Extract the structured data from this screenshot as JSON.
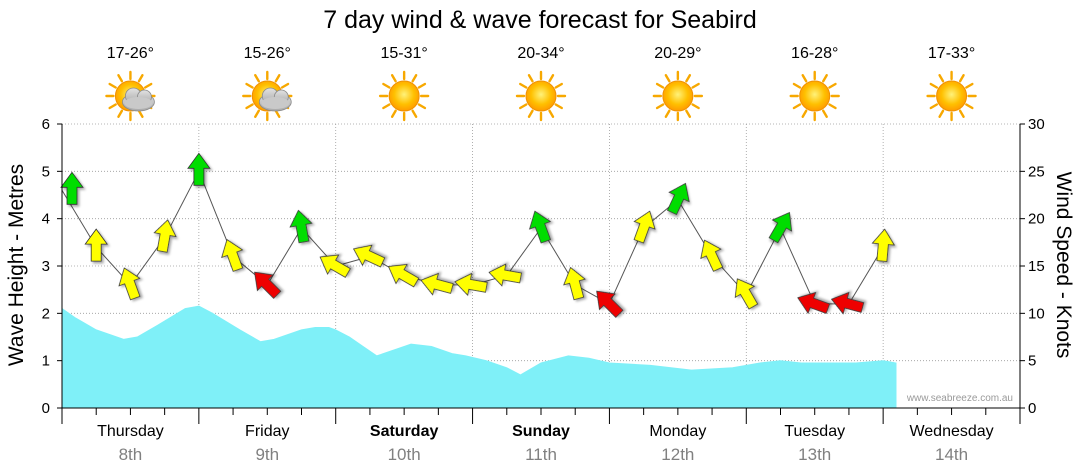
{
  "chart_data": {
    "type": "line",
    "title": "7 day wind & wave forecast for Seabird",
    "y_left_label": "Wave Height - Metres",
    "y_right_label": "Wind Speed - Knots",
    "y_left_range": [
      0,
      6
    ],
    "y_right_range": [
      0,
      30
    ],
    "y_left_ticks": [
      "0",
      "1",
      "2",
      "3",
      "4",
      "5",
      "6"
    ],
    "y_right_ticks": [
      "0",
      "5",
      "10",
      "15",
      "20",
      "25",
      "30"
    ],
    "grid": true,
    "days": [
      {
        "name": "Thursday",
        "date": "8th",
        "temp": "17-26°",
        "icon": "partly-cloudy-icon",
        "bold": false
      },
      {
        "name": "Friday",
        "date": "9th",
        "temp": "15-26°",
        "icon": "partly-cloudy-icon",
        "bold": false
      },
      {
        "name": "Saturday",
        "date": "10th",
        "temp": "15-31°",
        "icon": "sun-icon",
        "bold": true
      },
      {
        "name": "Sunday",
        "date": "11th",
        "temp": "20-34°",
        "icon": "sun-icon",
        "bold": true
      },
      {
        "name": "Monday",
        "date": "12th",
        "temp": "20-29°",
        "icon": "sun-icon",
        "bold": false
      },
      {
        "name": "Tuesday",
        "date": "13th",
        "temp": "16-28°",
        "icon": "sun-icon",
        "bold": false
      },
      {
        "name": "Wednesday",
        "date": "14th",
        "temp": "17-33°",
        "icon": "sun-icon",
        "bold": false
      }
    ],
    "wave_series": {
      "name": "Wave Height",
      "x_days": [
        0,
        0.1,
        0.25,
        0.45,
        0.55,
        0.7,
        0.9,
        1.0,
        1.1,
        1.3,
        1.45,
        1.55,
        1.75,
        1.85,
        1.95,
        2.0,
        2.1,
        2.2,
        2.3,
        2.45,
        2.55,
        2.7,
        2.85,
        2.95,
        3.1,
        3.25,
        3.35,
        3.5,
        3.7,
        3.85,
        4.0,
        4.3,
        4.6,
        4.9,
        5.1,
        5.25,
        5.4,
        5.6,
        5.8,
        6.0,
        6.1
      ],
      "values": [
        2.1,
        1.9,
        1.65,
        1.45,
        1.5,
        1.75,
        2.1,
        2.15,
        2.0,
        1.65,
        1.4,
        1.45,
        1.65,
        1.7,
        1.7,
        1.65,
        1.5,
        1.3,
        1.1,
        1.25,
        1.35,
        1.3,
        1.15,
        1.1,
        1.0,
        0.85,
        0.7,
        0.95,
        1.1,
        1.05,
        0.95,
        0.9,
        0.8,
        0.85,
        0.95,
        1.0,
        0.95,
        0.95,
        0.95,
        1.0,
        0.95
      ]
    },
    "wind_series": {
      "name": "Wind Speed",
      "colors": {
        "strong": "#00dd00",
        "moderate": "#ffff00",
        "high": "#ee0000"
      },
      "x_days": [
        0,
        0.25,
        0.5,
        0.75,
        1.0,
        1.25,
        1.5,
        1.75,
        2.0,
        2.25,
        2.5,
        2.75,
        3.0,
        3.25,
        3.5,
        3.75,
        4.0,
        4.25,
        4.5,
        4.75,
        5.0,
        5.25,
        5.5,
        5.75,
        6.0
      ],
      "speeds": [
        23,
        17,
        13,
        18,
        25,
        16,
        13,
        19,
        15,
        16,
        14,
        13,
        13,
        14,
        19,
        13,
        11,
        19,
        22,
        16,
        12,
        19,
        11,
        11,
        17
      ],
      "directions_deg": [
        0,
        0,
        -20,
        10,
        0,
        -20,
        -45,
        -10,
        -60,
        -65,
        -60,
        -75,
        -80,
        -80,
        -20,
        -15,
        -45,
        20,
        25,
        -25,
        -30,
        30,
        -70,
        -75,
        5
      ],
      "categories": [
        "strong",
        "moderate",
        "moderate",
        "moderate",
        "strong",
        "moderate",
        "high",
        "strong",
        "moderate",
        "moderate",
        "moderate",
        "moderate",
        "moderate",
        "moderate",
        "strong",
        "moderate",
        "high",
        "moderate",
        "strong",
        "moderate",
        "moderate",
        "strong",
        "high",
        "high",
        "moderate"
      ]
    },
    "watermark": "www.seabreeze.com.au"
  }
}
